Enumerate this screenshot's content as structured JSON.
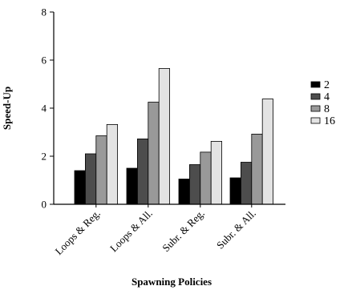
{
  "chart_data": {
    "type": "bar",
    "title": "",
    "xlabel": "Spawning Policies",
    "ylabel": "Speed-Up",
    "ylim": [
      0,
      8
    ],
    "yticks": [
      0,
      2,
      4,
      6,
      8
    ],
    "grid": false,
    "legend_position": "right",
    "categories": [
      "Loops & Reg.",
      "Loops & All.",
      "Subr. & Reg.",
      "Subr. & All."
    ],
    "series": [
      {
        "name": "2",
        "color": "#000000",
        "values": [
          1.4,
          1.5,
          1.05,
          1.1
        ]
      },
      {
        "name": "4",
        "color": "#4d4d4d",
        "values": [
          2.1,
          2.72,
          1.65,
          1.75
        ]
      },
      {
        "name": "8",
        "color": "#999999",
        "values": [
          2.85,
          4.25,
          2.17,
          2.92
        ]
      },
      {
        "name": "16",
        "color": "#e3e3e3",
        "values": [
          3.32,
          5.65,
          2.62,
          4.38
        ]
      }
    ]
  }
}
